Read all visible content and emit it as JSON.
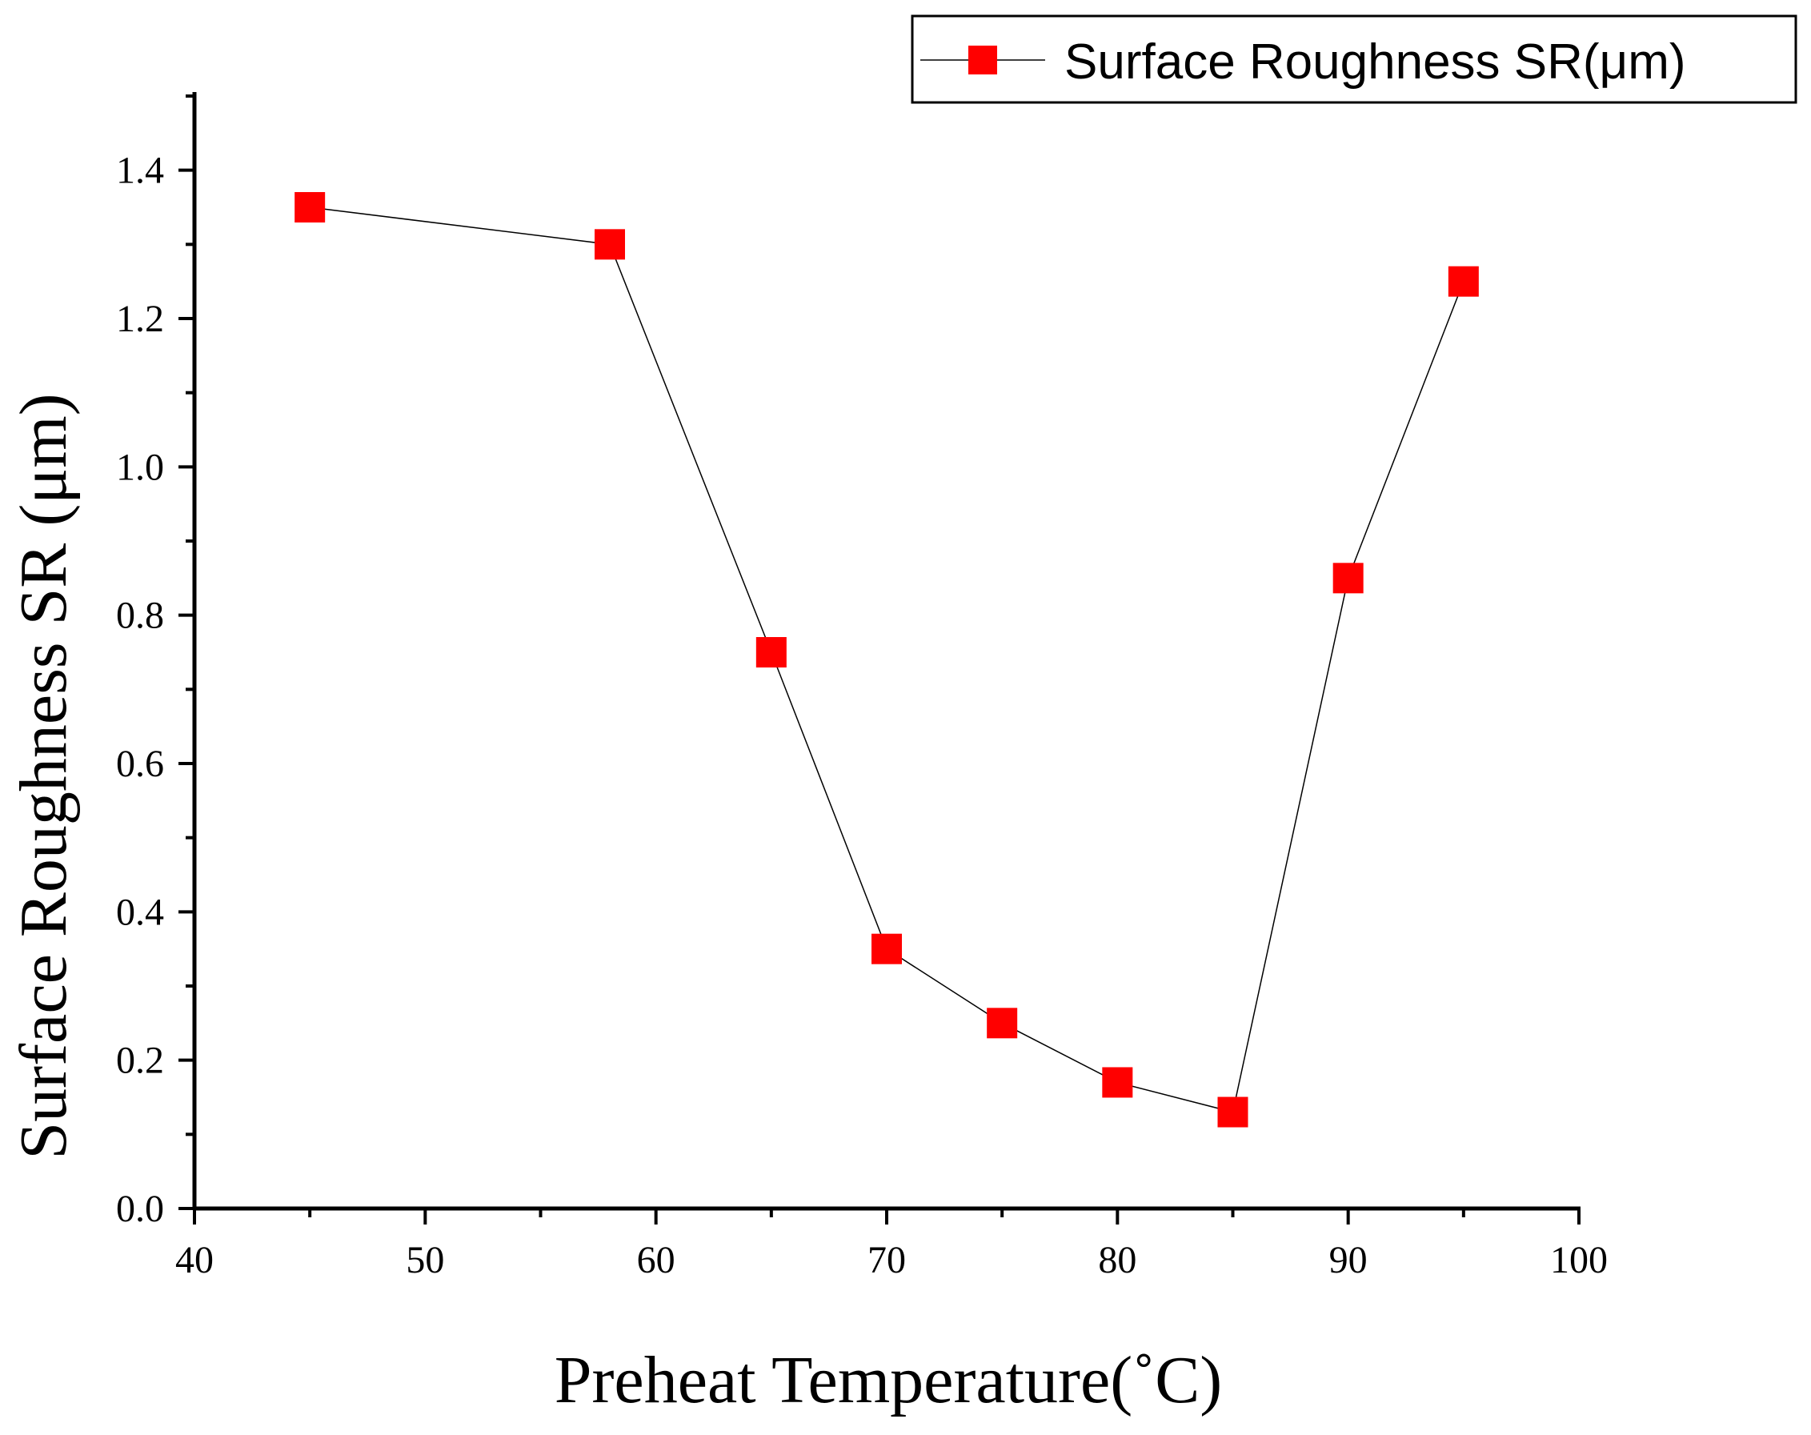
{
  "chart_data": {
    "type": "line",
    "title": "",
    "xlabel": "Preheat Temperature(˚C)",
    "ylabel": "Surface Roughness SR (μm)",
    "xlim": [
      40,
      100
    ],
    "ylim": [
      0.0,
      1.5
    ],
    "xticks": [
      40,
      50,
      60,
      70,
      80,
      90,
      100
    ],
    "xtick_labels": [
      "40",
      "50",
      "60",
      "70",
      "80",
      "90",
      "100"
    ],
    "yticks": [
      0.0,
      0.2,
      0.4,
      0.6,
      0.8,
      1.0,
      1.2,
      1.4
    ],
    "ytick_labels": [
      "0.0",
      "0.2",
      "0.4",
      "0.6",
      "0.8",
      "1.0",
      "1.2",
      "1.4"
    ],
    "grid": false,
    "legend_position": "top-right",
    "series": [
      {
        "name": "Surface Roughness SR(μm)",
        "marker": "square",
        "color": "#ff0000",
        "line_color": "#000000",
        "x": [
          45,
          58,
          65,
          70,
          75,
          80,
          85,
          90,
          95
        ],
        "y": [
          1.35,
          1.3,
          0.75,
          0.35,
          0.25,
          0.17,
          0.13,
          0.85,
          1.25
        ]
      }
    ]
  }
}
